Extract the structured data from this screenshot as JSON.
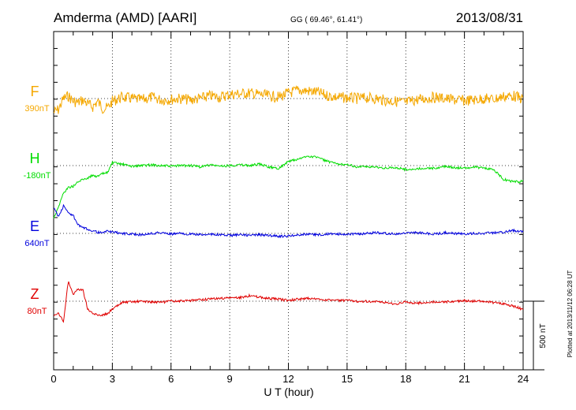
{
  "header": {
    "station": "Amderma (AMD)  [AARI]",
    "coords": "GG ( 69.46°,  61.41°)",
    "date": "2013/08/31"
  },
  "plotted_note": "Plotted at 2013/11/12 06:28 UT",
  "chart_data": {
    "type": "line",
    "xlabel": "U T (hour)",
    "xlim": [
      0,
      24
    ],
    "xticks": [
      "0",
      "3",
      "6",
      "9",
      "12",
      "15",
      "18",
      "21",
      "24"
    ],
    "scale_bar": "500 nT",
    "grid": "dotted",
    "series": [
      {
        "name": "F",
        "baseline": "390nT",
        "color": "#f5a800",
        "x": [
          0,
          0.25,
          0.5,
          0.75,
          1,
          1.25,
          1.5,
          1.75,
          2,
          2.25,
          2.5,
          2.75,
          3,
          3.5,
          4,
          4.5,
          5,
          5.5,
          6,
          6.5,
          7,
          7.5,
          8,
          8.5,
          9,
          9.5,
          10,
          10.5,
          11,
          11.5,
          12,
          12.5,
          13,
          13.5,
          14,
          14.5,
          15,
          15.5,
          16,
          16.5,
          17,
          17.5,
          18,
          18.5,
          19,
          19.5,
          20,
          20.5,
          21,
          21.5,
          22,
          22.5,
          23,
          23.5,
          24
        ],
        "y": [
          -100,
          -80,
          0,
          20,
          -20,
          -30,
          -10,
          -40,
          -60,
          -20,
          -70,
          -70,
          -20,
          10,
          0,
          -10,
          10,
          -10,
          -5,
          0,
          -10,
          0,
          20,
          10,
          30,
          35,
          40,
          30,
          20,
          10,
          40,
          60,
          55,
          45,
          20,
          10,
          5,
          0,
          5,
          0,
          -15,
          -20,
          -30,
          -10,
          0,
          10,
          0,
          -10,
          -15,
          -10,
          0,
          -5,
          15,
          20,
          -5
        ]
      },
      {
        "name": "H",
        "baseline": "-180nT",
        "color": "#00dd00",
        "x": [
          0,
          0.25,
          0.5,
          0.75,
          1,
          1.25,
          1.5,
          1.75,
          2,
          2.25,
          2.5,
          2.75,
          3,
          3.5,
          4,
          4.5,
          5,
          5.5,
          6,
          6.5,
          7,
          7.5,
          8,
          8.5,
          9,
          9.5,
          10,
          10.5,
          11,
          11.5,
          12,
          12.5,
          13,
          13.5,
          14,
          14.5,
          15,
          15.5,
          16,
          16.5,
          17,
          17.5,
          18,
          18.5,
          19,
          19.5,
          20,
          20.5,
          21,
          21.5,
          22,
          22.5,
          23,
          23.5,
          24
        ],
        "y": [
          -380,
          -300,
          -200,
          -160,
          -150,
          -120,
          -100,
          -90,
          -70,
          -80,
          -60,
          -50,
          20,
          10,
          -5,
          0,
          5,
          0,
          -5,
          0,
          0,
          -10,
          5,
          -5,
          0,
          5,
          0,
          10,
          -10,
          -20,
          30,
          45,
          70,
          60,
          30,
          10,
          10,
          -10,
          -10,
          -10,
          -20,
          -15,
          -30,
          -25,
          -20,
          -20,
          -5,
          -15,
          -20,
          -10,
          -20,
          -30,
          -100,
          -120,
          -115
        ]
      },
      {
        "name": "E",
        "baseline": "640nT",
        "color": "#0000dd",
        "x": [
          0,
          0.25,
          0.5,
          0.75,
          1,
          1.25,
          1.5,
          1.75,
          2,
          2.25,
          2.5,
          2.75,
          3,
          3.5,
          4,
          4.5,
          5,
          5.5,
          6,
          6.5,
          7,
          7.5,
          8,
          8.5,
          9,
          9.5,
          10,
          10.5,
          11,
          11.5,
          12,
          12.5,
          13,
          13.5,
          14,
          14.5,
          15,
          15.5,
          16,
          16.5,
          17,
          17.5,
          18,
          18.5,
          19,
          19.5,
          20,
          20.5,
          21,
          21.5,
          22,
          22.5,
          23,
          23.5,
          24
        ],
        "y": [
          190,
          120,
          200,
          150,
          130,
          60,
          40,
          30,
          20,
          10,
          0,
          20,
          10,
          0,
          -5,
          -10,
          0,
          5,
          -5,
          0,
          -5,
          -10,
          -5,
          -10,
          -15,
          -10,
          -15,
          -10,
          -15,
          -20,
          -20,
          -10,
          -5,
          -10,
          -5,
          -5,
          -5,
          -5,
          0,
          5,
          0,
          -5,
          0,
          5,
          0,
          -5,
          5,
          0,
          -5,
          0,
          0,
          5,
          10,
          20,
          15
        ]
      },
      {
        "name": "Z",
        "baseline": "80nT",
        "color": "#e00000",
        "x": [
          0,
          0.25,
          0.5,
          0.75,
          1,
          1.25,
          1.5,
          1.75,
          2,
          2.25,
          2.5,
          2.75,
          3,
          3.5,
          4,
          4.5,
          5,
          5.5,
          6,
          6.5,
          7,
          7.5,
          8,
          8.5,
          9,
          9.5,
          10,
          10.5,
          11,
          11.5,
          12,
          12.5,
          13,
          13.5,
          14,
          14.5,
          15,
          15.5,
          16,
          16.5,
          17,
          17.5,
          18,
          18.5,
          19,
          19.5,
          20,
          20.5,
          21,
          21.5,
          22,
          22.5,
          23,
          23.5,
          24
        ],
        "y": [
          -110,
          -90,
          -150,
          150,
          50,
          90,
          80,
          -60,
          -90,
          -100,
          -100,
          -90,
          -60,
          -10,
          -5,
          0,
          -5,
          -10,
          0,
          0,
          5,
          10,
          15,
          20,
          25,
          25,
          40,
          30,
          20,
          15,
          5,
          15,
          20,
          15,
          10,
          5,
          5,
          0,
          0,
          -5,
          -10,
          -20,
          -5,
          -15,
          -10,
          -5,
          -5,
          0,
          5,
          0,
          0,
          -10,
          -20,
          -35,
          -60
        ]
      }
    ]
  }
}
